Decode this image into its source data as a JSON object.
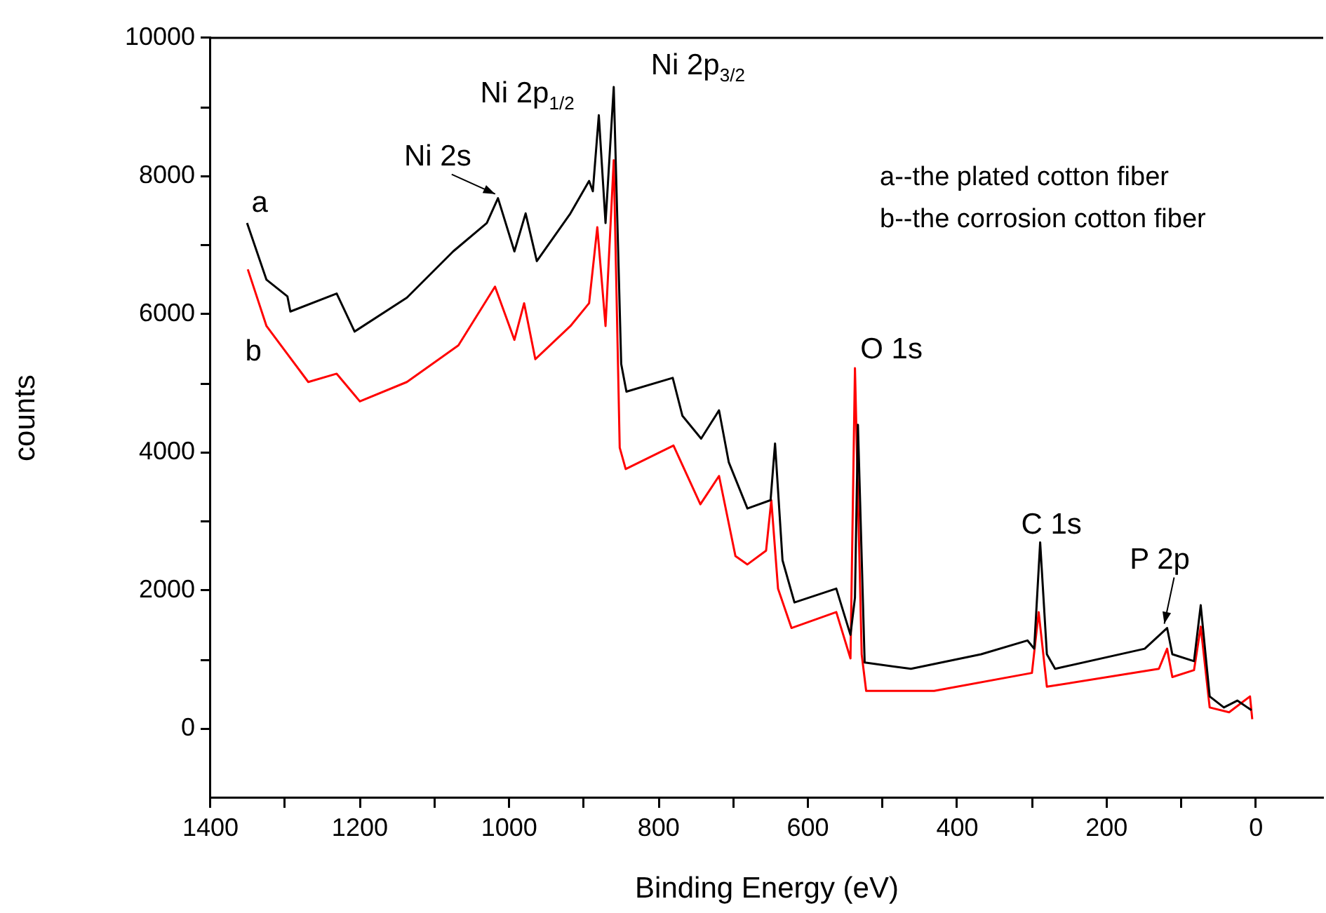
{
  "chart_data": {
    "type": "line",
    "xlabel": "Binding Energy (eV)",
    "ylabel": "counts",
    "xlim": [
      1400,
      -90
    ],
    "ylim": [
      -1000,
      10000
    ],
    "xticks": [
      1400,
      {
        "value": 1300,
        "label": null
      },
      1200,
      {
        "value": 1100,
        "label": null
      },
      1000,
      {
        "value": 900,
        "label": null
      },
      800,
      {
        "value": 700,
        "label": null
      },
      600,
      {
        "value": 500,
        "label": null
      },
      400,
      {
        "value": 300,
        "label": null
      },
      200,
      {
        "value": 100,
        "label": null
      },
      0
    ],
    "yticks": [
      0,
      {
        "value": 1000,
        "label": null
      },
      2000,
      {
        "value": 3000,
        "label": null
      },
      4000,
      {
        "value": 5000,
        "label": null
      },
      6000,
      {
        "value": 7000,
        "label": null
      },
      8000,
      {
        "value": 9000,
        "label": null
      },
      10000
    ],
    "grid": false,
    "legend": false,
    "marker": "none",
    "line_style": "solid",
    "series": [
      {
        "name": "a",
        "color": "#000000",
        "x": [
          1351,
          1325,
          1297,
          1293,
          1231,
          1207,
          1137,
          1075,
          1030,
          1015,
          993,
          978,
          963,
          918,
          893,
          888,
          880,
          871,
          860,
          850,
          843,
          781,
          768,
          743,
          719,
          706,
          681,
          650,
          644,
          634,
          618,
          562,
          543,
          537,
          533,
          524,
          462,
          368,
          306,
          297,
          289,
          280,
          269,
          149,
          119,
          112,
          83,
          74,
          62,
          43,
          25,
          6
        ],
        "values": [
          7320,
          6500,
          6260,
          6040,
          6300,
          5750,
          6240,
          6910,
          7320,
          7680,
          6910,
          7460,
          6770,
          7460,
          7930,
          7780,
          8880,
          7320,
          9290,
          5280,
          4880,
          5080,
          4530,
          4200,
          4610,
          3860,
          3190,
          3310,
          4130,
          2440,
          1830,
          2030,
          1360,
          1900,
          4400,
          960,
          870,
          1080,
          1280,
          1160,
          2700,
          1080,
          870,
          1160,
          1460,
          1080,
          980,
          1790,
          470,
          310,
          410,
          270
        ]
      },
      {
        "name": "b",
        "color": "#ff0000",
        "x": [
          1350,
          1325,
          1269,
          1231,
          1200,
          1137,
          1068,
          1019,
          993,
          980,
          965,
          918,
          893,
          882,
          871,
          860,
          852,
          844,
          780,
          744,
          719,
          697,
          681,
          656,
          649,
          640,
          622,
          562,
          543,
          537,
          528,
          522,
          431,
          300,
          291,
          280,
          130,
          119,
          112,
          83,
          74,
          62,
          36,
          8,
          5
        ],
        "values": [
          6650,
          5830,
          5020,
          5140,
          4740,
          5020,
          5550,
          6400,
          5630,
          6160,
          5350,
          5830,
          6160,
          7260,
          5830,
          8230,
          4070,
          3760,
          4100,
          3250,
          3660,
          2500,
          2380,
          2580,
          3310,
          2030,
          1460,
          1690,
          1020,
          5220,
          1080,
          550,
          550,
          810,
          1690,
          610,
          870,
          1160,
          750,
          850,
          1480,
          310,
          240,
          470,
          140
        ]
      }
    ],
    "annotations": [
      {
        "text": "Ni 2s",
        "x": 1015,
        "y": 7680
      },
      {
        "text": "Ni 2p$_{1/2}$",
        "x": 880,
        "y": 8880
      },
      {
        "text": "Ni 2p$_{3/2}$",
        "x": 860,
        "y": 9290
      },
      {
        "text": "O 1s",
        "x": 537,
        "y": 5220
      },
      {
        "text": "C 1s",
        "x": 289,
        "y": 2700
      },
      {
        "text": "P 2p",
        "x": 119,
        "y": 1460
      },
      "a--the plated cotton fiber",
      "b--the corrosion cotton fiber"
    ]
  }
}
